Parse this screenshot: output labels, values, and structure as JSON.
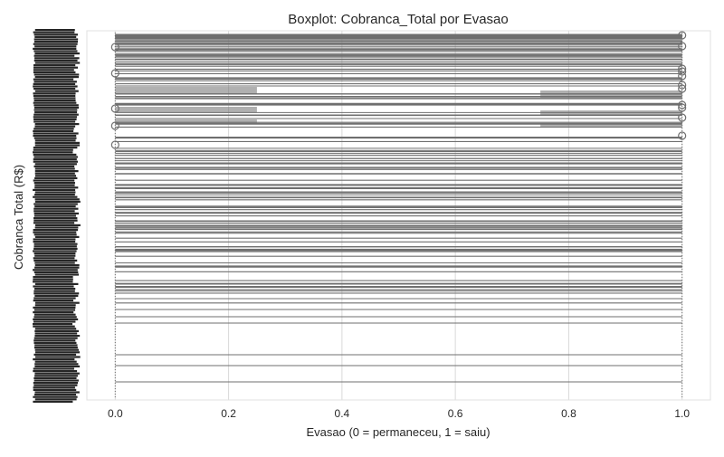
{
  "chart_data": {
    "type": "box",
    "title": "Boxplot: Cobranca_Total por Evasao",
    "xlabel": "Evasao (0 = permaneceu, 1 = saiu)",
    "ylabel": "Cobranca Total (R$)",
    "xlim": [
      -0.05,
      1.05
    ],
    "x_ticks": [
      "0.0",
      "0.2",
      "0.4",
      "0.6",
      "0.8",
      "1.0"
    ],
    "x_tick_values": [
      0.0,
      0.2,
      0.4,
      0.6,
      0.8,
      1.0
    ],
    "grid": true,
    "y_ticks_legible": false,
    "colors": {
      "box_edge": "#6f6f6f",
      "grid": "#d9d9d9",
      "text": "#262626",
      "ytick_mass": "#262626"
    },
    "series": [
      {
        "category": "0",
        "x_position": 0.0
      },
      {
        "category": "1",
        "x_position": 1.0
      }
    ]
  }
}
